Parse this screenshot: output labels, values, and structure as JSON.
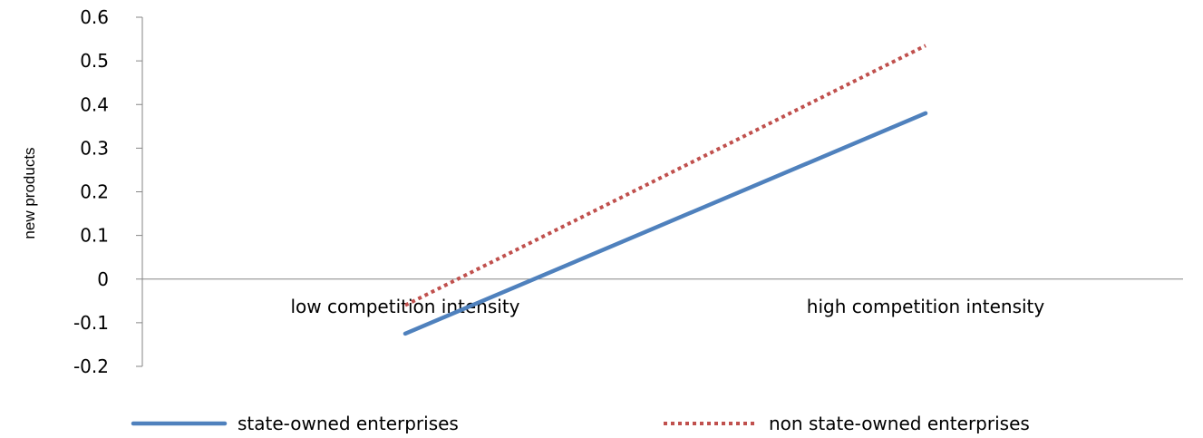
{
  "chart_data": {
    "type": "line",
    "title": "",
    "xlabel": "",
    "ylabel": "new products",
    "categories": [
      "low competition intensity",
      "high competition intensity"
    ],
    "ylim": [
      -0.2,
      0.6
    ],
    "yticks": [
      -0.2,
      -0.1,
      0,
      0.1,
      0.2,
      0.3,
      0.4,
      0.5,
      0.6
    ],
    "ytick_labels": [
      "-0.2",
      "-0.1",
      "0",
      "0.1",
      "0.2",
      "0.3",
      "0.4",
      "0.5",
      "0.6"
    ],
    "grid": false,
    "legend_position": "bottom",
    "series": [
      {
        "name": "state-owned enterprises",
        "values": [
          -0.125,
          0.38
        ],
        "color": "#4F81BD",
        "style": "solid"
      },
      {
        "name": "non state-owned enterprises",
        "values": [
          -0.06,
          0.535
        ],
        "color": "#C0504D",
        "style": "dotted"
      }
    ]
  }
}
